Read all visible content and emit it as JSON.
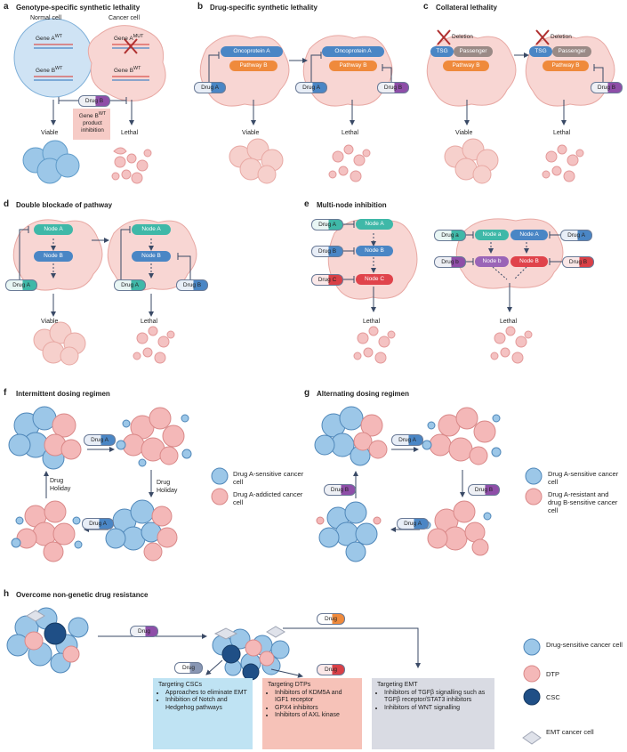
{
  "panels": {
    "a": {
      "letter": "a",
      "title": "Genotype-specific synthetic lethality",
      "normal_cell": "Normal cell",
      "cancer_cell": "Cancer cell",
      "gene_a_wt": "Gene A",
      "gene_a_wt_sup": "WT",
      "gene_b_wt": "Gene B",
      "gene_b_wt_sup": "WT",
      "gene_a_mut": "Gene A",
      "gene_a_mut_sup": "MUT",
      "gene_b_wt2": "Gene B",
      "gene_b_wt2_sup": "WT",
      "drug": "Drug B",
      "inhibition_pre": "Gene B",
      "inhibition_sup": "WT",
      "inhibition_post": "product inhibition",
      "viable": "Viable",
      "lethal": "Lethal"
    },
    "b": {
      "letter": "b",
      "title": "Drug-specific synthetic lethality",
      "oncoprotein": "Oncoprotein A",
      "pathway": "Pathway B",
      "drug_a": "Drug A",
      "drug_b": "Drug B",
      "viable": "Viable",
      "lethal": "Lethal"
    },
    "c": {
      "letter": "c",
      "title": "Collateral lethality",
      "deletion": "Deletion",
      "tsg": "TSG",
      "passenger": "Passenger",
      "pathway": "Pathway B",
      "drug_b": "Drug B",
      "viable": "Viable",
      "lethal": "Lethal"
    },
    "d": {
      "letter": "d",
      "title": "Double blockade of pathway",
      "node_a": "Node A",
      "node_b": "Node B",
      "drug_a": "Drug A",
      "drug_b": "Drug B",
      "viable": "Viable",
      "lethal": "Lethal"
    },
    "e": {
      "letter": "e",
      "title": "Multi-node inhibition",
      "node_a": "Node A",
      "node_b": "Node B",
      "node_c": "Node C",
      "drug_a": "Drug A",
      "drug_b": "Drug B",
      "drug_c": "Drug C",
      "node_a_lower": "Node a",
      "node_b_lower": "Node b",
      "drug_a_lower": "Drug a",
      "drug_b_lower": "Drug b",
      "lethal": "Lethal"
    },
    "f": {
      "letter": "f",
      "title": "Intermittent dosing regimen",
      "drug_a": "Drug A",
      "drug_holiday": "Drug Holiday",
      "legend_sensitive": "Drug A-sensitive cancer cell",
      "legend_addicted": "Drug A-addicted cancer cell"
    },
    "g": {
      "letter": "g",
      "title": "Alternating dosing regimen",
      "drug_a": "Drug A",
      "drug_b": "Drug B",
      "legend_sensitive": "Drug A-sensitive cancer cell",
      "legend_resistant": "Drug A-resistant and drug B-sensitive cancer cell"
    },
    "h": {
      "letter": "h",
      "title": "Overcome non-genetic drug resistance",
      "drug": "Drug",
      "box_csc": {
        "title": "Targeting CSCs",
        "items": [
          "Approaches to eliminate EMT",
          "Inhibition of Notch and Hedgehog pathways"
        ]
      },
      "box_dtp": {
        "title": "Targeting DTPs",
        "items": [
          "Inhibitors of KDM5A and IGF1 receptor",
          "GPX4 inhibitors",
          "Inhibitors of AXL kinase"
        ]
      },
      "box_emt": {
        "title": "Targeting EMT",
        "items": [
          "Inhibitors of TGFβ signalling such as TGFβ receptor/STAT3 inhibitors",
          "Inhibitors of WNT signalling"
        ]
      },
      "legend": {
        "sensitive": "Drug-sensitive cancer cell",
        "dtp": "DTP",
        "csc": "CSC",
        "emt": "EMT cancer cell"
      }
    }
  },
  "colors": {
    "blue_cell": "#9cc7e8",
    "pink_cell": "#f4b8b8",
    "dark_cell": "#1f4f86",
    "arrow": "#3a4a66",
    "box_csc": "#bfe3f3",
    "box_dtp": "#f6c2b8",
    "box_emt": "#d9dbe3"
  }
}
